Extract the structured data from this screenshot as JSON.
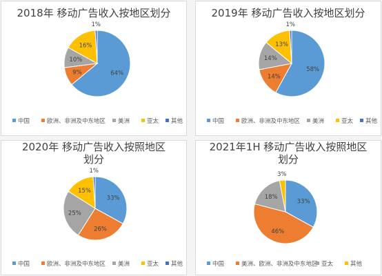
{
  "chart_data": [
    {
      "type": "pie",
      "title": "2018年 移动广告收入按地区划分",
      "categories": [
        "中国",
        "欧洲、非洲及中东地区",
        "美洲",
        "亚太",
        "其他"
      ],
      "values": [
        64,
        9,
        10,
        16,
        1
      ],
      "labels": [
        "64%",
        "9%",
        "10%",
        "16%",
        "1%"
      ],
      "colors": [
        "#5b9bd5",
        "#ed7d31",
        "#a5a5a5",
        "#ffc000",
        "#4472c4"
      ],
      "legend_position": "bottom"
    },
    {
      "type": "pie",
      "title": "2019年 移动广告收入按地区划分",
      "categories": [
        "中国",
        "欧洲、非洲及中东地区",
        "美洲",
        "亚太",
        "其他"
      ],
      "values": [
        58,
        14,
        14,
        13,
        1
      ],
      "labels": [
        "58%",
        "14%",
        "14%",
        "13%",
        "1%"
      ],
      "colors": [
        "#5b9bd5",
        "#ed7d31",
        "#a5a5a5",
        "#ffc000",
        "#4472c4"
      ],
      "legend_position": "bottom"
    },
    {
      "type": "pie",
      "title": "2020年 移动广告收入按照地区划分",
      "categories": [
        "中国",
        "欧洲、非洲及中东地区",
        "美洲",
        "亚太",
        "其他"
      ],
      "values": [
        33,
        26,
        25,
        15,
        1
      ],
      "labels": [
        "33%",
        "26%",
        "25%",
        "15%",
        "1%"
      ],
      "colors": [
        "#5b9bd5",
        "#ed7d31",
        "#a5a5a5",
        "#ffc000",
        "#4472c4"
      ],
      "legend_position": "bottom"
    },
    {
      "type": "pie",
      "title": "2021年1H 移动广告收入按照地区划分",
      "categories": [
        "中国",
        "美洲、欧洲、非洲及中东地区",
        "亚太",
        "其他"
      ],
      "values": [
        33,
        46,
        18,
        3
      ],
      "labels": [
        "33%",
        "46%",
        "18%",
        "3%"
      ],
      "colors": [
        "#5b9bd5",
        "#ed7d31",
        "#a5a5a5",
        "#ffc000"
      ],
      "legend_position": "bottom"
    }
  ]
}
